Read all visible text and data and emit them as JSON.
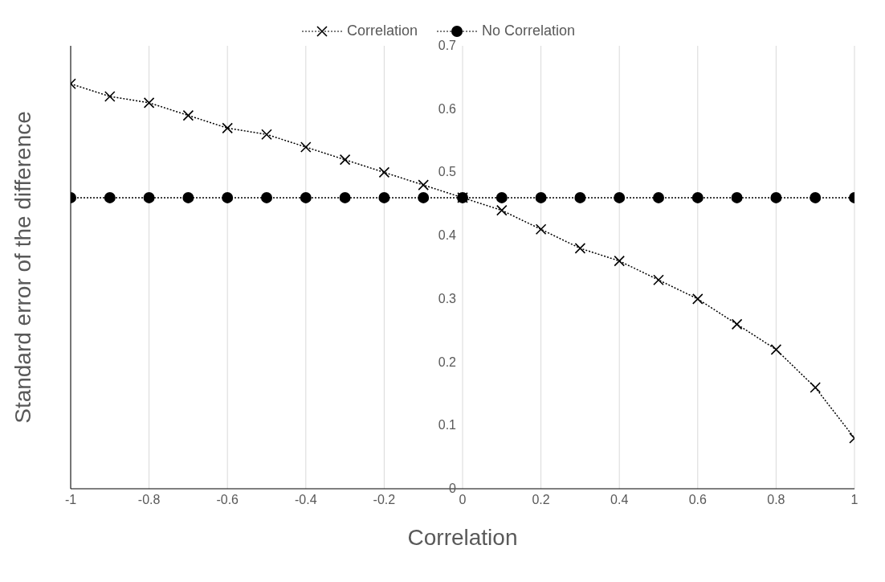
{
  "chart_data": {
    "type": "line",
    "xlabel": "Correlation",
    "ylabel": "Standard error of the difference",
    "x": [
      -1,
      -0.9,
      -0.8,
      -0.7,
      -0.6,
      -0.5,
      -0.4,
      -0.3,
      -0.2,
      -0.1,
      0,
      0.1,
      0.2,
      0.3,
      0.4,
      0.5,
      0.6,
      0.7,
      0.8,
      0.9,
      1
    ],
    "series": [
      {
        "name": "Correlation",
        "color": "#000000",
        "marker": "cross",
        "values": [
          0.64,
          0.62,
          0.61,
          0.59,
          0.57,
          0.56,
          0.54,
          0.52,
          0.5,
          0.48,
          0.46,
          0.44,
          0.41,
          0.38,
          0.36,
          0.33,
          0.3,
          0.26,
          0.22,
          0.16,
          0.08
        ]
      },
      {
        "name": "No Correlation",
        "color": "#000000",
        "marker": "circle",
        "values": [
          0.46,
          0.46,
          0.46,
          0.46,
          0.46,
          0.46,
          0.46,
          0.46,
          0.46,
          0.46,
          0.46,
          0.46,
          0.46,
          0.46,
          0.46,
          0.46,
          0.46,
          0.46,
          0.46,
          0.46,
          0.46
        ]
      }
    ],
    "xlim": [
      -1,
      1
    ],
    "xticks": [
      -1,
      -0.8,
      -0.6,
      -0.4,
      -0.2,
      0,
      0.2,
      0.4,
      0.6,
      0.8,
      1
    ],
    "ylim": [
      0,
      0.7
    ],
    "yticks": [
      0,
      0.1,
      0.2,
      0.3,
      0.4,
      0.5,
      0.6,
      0.7
    ],
    "grid": "x",
    "legend": "top",
    "line_style": "dotted"
  }
}
